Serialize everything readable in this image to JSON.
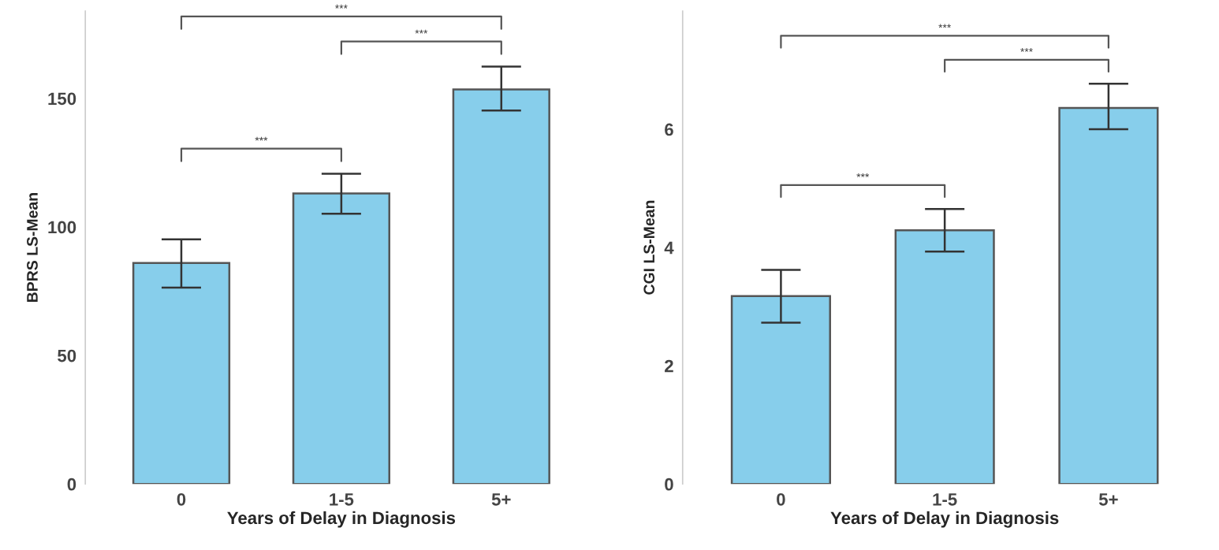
{
  "chart_data": [
    {
      "type": "bar",
      "xlabel": "Years of Delay in Diagnosis",
      "ylabel": "BPRS LS-Mean",
      "categories": [
        "0",
        "1-5",
        "5+"
      ],
      "values": [
        86,
        113,
        153.5
      ],
      "errors": [
        [
          76.4,
          95.2
        ],
        [
          105.1,
          120.7
        ],
        [
          145.3,
          162.4
        ]
      ],
      "color": "#87ceeb",
      "ylim": [
        0,
        184
      ],
      "yticks": [
        0,
        50,
        100,
        150
      ],
      "grid": false,
      "annotations": [
        "***",
        "***",
        "***"
      ]
    },
    {
      "type": "bar",
      "xlabel": "Years of Delay in Diagnosis",
      "ylabel": "CGI LS-Mean",
      "categories": [
        "0",
        "1-5",
        "5+"
      ],
      "values": [
        3.18,
        4.29,
        6.36
      ],
      "errors": [
        [
          2.73,
          3.62
        ],
        [
          3.93,
          4.65
        ],
        [
          6.0,
          6.77
        ]
      ],
      "color": "#87ceeb",
      "ylim": [
        0,
        8
      ],
      "yticks": [
        0,
        2,
        4,
        6
      ],
      "grid": false,
      "annotations": [
        "***",
        "***",
        "***"
      ]
    }
  ]
}
